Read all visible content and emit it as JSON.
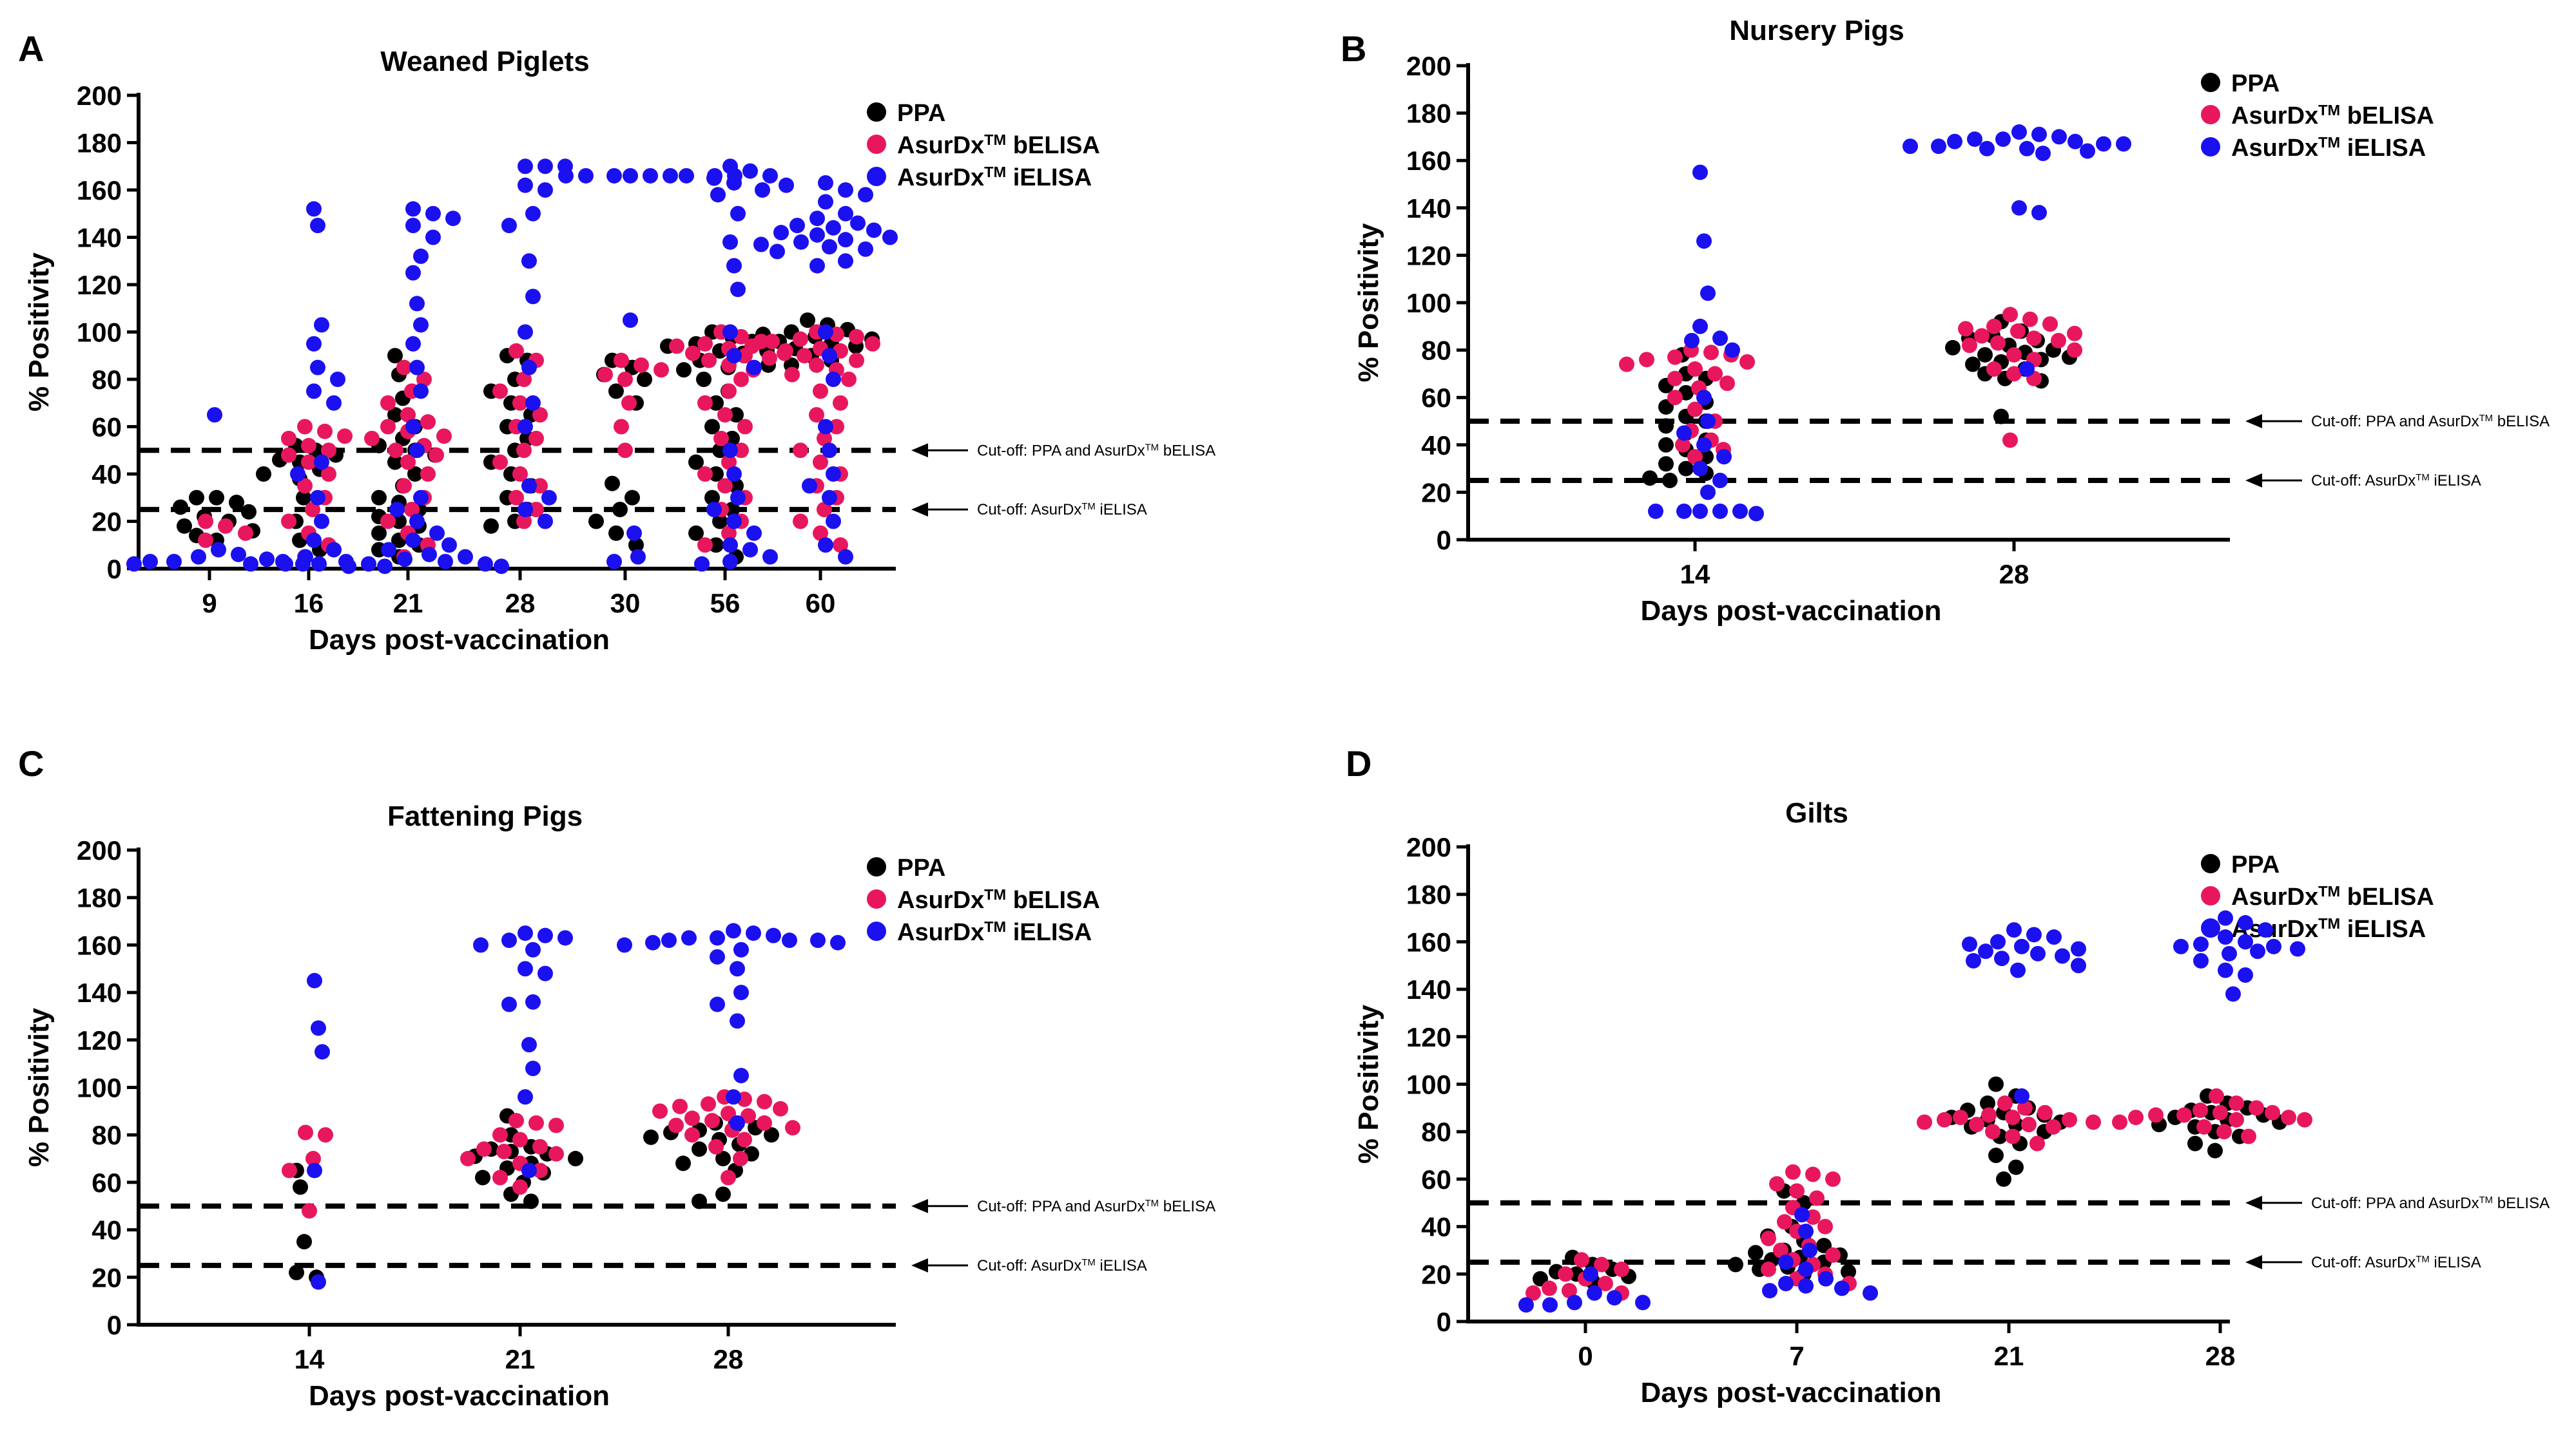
{
  "colors": {
    "ppa": "#000000",
    "belisa": "#e8175d",
    "ielisa": "#1b10f0"
  },
  "chart_data": [
    {
      "type": "scatter",
      "panel_label": "A",
      "title": "Weaned Piglets",
      "xlabel": "Days post-vaccination",
      "ylabel": "% Positivity",
      "ylim": [
        0,
        200
      ],
      "yticks": [
        0,
        20,
        40,
        60,
        80,
        100,
        120,
        140,
        160,
        180,
        200
      ],
      "categories": [
        "9",
        "16",
        "21",
        "28",
        "30",
        "56",
        "60"
      ],
      "legend": [
        "PPA",
        "AsurDx™ bELISA",
        "AsurDx™ iELISA"
      ],
      "cutoffs": [
        {
          "value": 50,
          "label": "Cut-off: PPA and AsurDx™ bELISA"
        },
        {
          "value": 25,
          "label": "Cut-off: AsurDx™ iELISA"
        }
      ],
      "series": [
        {
          "name": "PPA",
          "values": [
            [
              28,
              30,
              26,
              22,
              18,
              24,
              14,
              12,
              30,
              20,
              16
            ],
            [
              52,
              48,
              45,
              50,
              46,
              40,
              38,
              42,
              30,
              20,
              12,
              8
            ],
            [
              90,
              82,
              72,
              65,
              60,
              55,
              50,
              45,
              40,
              35,
              30,
              25,
              22,
              20,
              18,
              15,
              12,
              10,
              8,
              5,
              48,
              52,
              28
            ],
            [
              90,
              88,
              80,
              75,
              70,
              65,
              60,
              55,
              50,
              45,
              40,
              35,
              30,
              25,
              20,
              18
            ],
            [
              88,
              85,
              82,
              80,
              75,
              70,
              30,
              25,
              20,
              10,
              36,
              15
            ],
            [
              100,
              98,
              96,
              95,
              94,
              92,
              90,
              88,
              86,
              85,
              84,
              80,
              75,
              70,
              65,
              60,
              55,
              50,
              45,
              40,
              35,
              30,
              25,
              20,
              15,
              10,
              5
            ],
            [
              105,
              103,
              101,
              100,
              99,
              98,
              97,
              96,
              95,
              94,
              93,
              92,
              91,
              90,
              88,
              86
            ]
          ]
        },
        {
          "name": "AsurDx™ bELISA",
          "values": [
            [
              20,
              18,
              15,
              12
            ],
            [
              60,
              58,
              56,
              55,
              52,
              50,
              48,
              45,
              40,
              35,
              30,
              25,
              20,
              15,
              10,
              5
            ],
            [
              85,
              80,
              75,
              70,
              65,
              62,
              60,
              58,
              56,
              55,
              52,
              50,
              48,
              45,
              40,
              35,
              30,
              25,
              20,
              15,
              10,
              5
            ],
            [
              92,
              88,
              80,
              75,
              70,
              65,
              60,
              55,
              50,
              45,
              40,
              35,
              30,
              25,
              20
            ],
            [
              88,
              86,
              84,
              82,
              80,
              70,
              60,
              50
            ],
            [
              100,
              98,
              96,
              95,
              94,
              93,
              92,
              91,
              90,
              89,
              88,
              86,
              84,
              80,
              75,
              70,
              65,
              60,
              55,
              50,
              45,
              40,
              35,
              30,
              25,
              20,
              15,
              10
            ],
            [
              100,
              99,
              98,
              97,
              96,
              95,
              94,
              93,
              92,
              91,
              90,
              88,
              86,
              84,
              82,
              80,
              75,
              70,
              65,
              60,
              55,
              50,
              45,
              40,
              35,
              30,
              25,
              20,
              15,
              10
            ]
          ]
        },
        {
          "name": "AsurDx™ iELISA",
          "values": [
            [
              65,
              8,
              6,
              5,
              4,
              3,
              3,
              2,
              2,
              2,
              3,
              2
            ],
            [
              152,
              145,
              103,
              95,
              85,
              80,
              75,
              70,
              45,
              40,
              30,
              20,
              12,
              8,
              5,
              3,
              2
            ],
            [
              152,
              150,
              148,
              145,
              140,
              132,
              125,
              112,
              103,
              95,
              85,
              75,
              60,
              50,
              30,
              25,
              20,
              15,
              12,
              10,
              8,
              6,
              5,
              4,
              3,
              2,
              1,
              1,
              1,
              2
            ],
            [
              170,
              170,
              170,
              162,
              160,
              150,
              145,
              130,
              115,
              100,
              85,
              70,
              60,
              35,
              30,
              25,
              20
            ],
            [
              166,
              166,
              166,
              166,
              166,
              166,
              166,
              166,
              166,
              105,
              15,
              5,
              3
            ],
            [
              170,
              168,
              166,
              165,
              163,
              162,
              160,
              158,
              150,
              138,
              128,
              118,
              100,
              90,
              85,
              50,
              40,
              30,
              25,
              20,
              15,
              10,
              8,
              5,
              3,
              2
            ],
            [
              163,
              160,
              158,
              155,
              150,
              148,
              146,
              145,
              144,
              143,
              142,
              141,
              140,
              139,
              138,
              137,
              136,
              135,
              134,
              130,
              128,
              100,
              90,
              80,
              60,
              50,
              40,
              35,
              30,
              20,
              10,
              5
            ]
          ]
        }
      ]
    },
    {
      "type": "scatter",
      "panel_label": "B",
      "title": "Nursery Pigs",
      "xlabel": "Days post-vaccination",
      "ylabel": "% Positivity",
      "ylim": [
        0,
        200
      ],
      "yticks": [
        0,
        20,
        40,
        60,
        80,
        100,
        120,
        140,
        160,
        180,
        200
      ],
      "categories": [
        "14",
        "28"
      ],
      "legend": [
        "PPA",
        "AsurDx™ bELISA",
        "AsurDx™ iELISA"
      ],
      "cutoffs": [
        {
          "value": 50,
          "label": "Cut-off: PPA and AsurDx™ bELISA"
        },
        {
          "value": 25,
          "label": "Cut-off: AsurDx™ iELISA"
        }
      ],
      "series": [
        {
          "name": "PPA",
          "values": [
            [
              78,
              70,
              68,
              65,
              62,
              58,
              56,
              52,
              50,
              48,
              45,
              42,
              40,
              38,
              35,
              32,
              30,
              28,
              26,
              25
            ],
            [
              92,
              88,
              86,
              85,
              84,
              82,
              81,
              80,
              79,
              78,
              77,
              76,
              75,
              74,
              72,
              70,
              68,
              67,
              52
            ]
          ]
        },
        {
          "name": "AsurDx™ bELISA",
          "values": [
            [
              80,
              79,
              78,
              77,
              76,
              75,
              74,
              72,
              70,
              68,
              66,
              64,
              60,
              55,
              50,
              46,
              42,
              40,
              38,
              35
            ],
            [
              95,
              93,
              91,
              90,
              89,
              88,
              87,
              86,
              85,
              84,
              83,
              82,
              80,
              78,
              76,
              72,
              70,
              68,
              42
            ]
          ]
        },
        {
          "name": "AsurDx™ iELISA",
          "values": [
            [
              155,
              126,
              104,
              90,
              85,
              84,
              80,
              60,
              50,
              45,
              40,
              35,
              30,
              25,
              20,
              12,
              12,
              12,
              12,
              12,
              11
            ],
            [
              172,
              171,
              170,
              169,
              169,
              168,
              168,
              167,
              167,
              166,
              166,
              165,
              165,
              164,
              163,
              140,
              138,
              72
            ]
          ]
        }
      ]
    },
    {
      "type": "scatter",
      "panel_label": "C",
      "title": "Fattening Pigs",
      "xlabel": "Days post-vaccination",
      "ylabel": "% Positivity",
      "ylim": [
        0,
        200
      ],
      "yticks": [
        0,
        20,
        40,
        60,
        80,
        100,
        120,
        140,
        160,
        180,
        200
      ],
      "categories": [
        "14",
        "21",
        "28"
      ],
      "legend": [
        "PPA",
        "AsurDx™ bELISA",
        "AsurDx™ iELISA"
      ],
      "cutoffs": [
        {
          "value": 50,
          "label": "Cut-off: PPA and AsurDx™ bELISA"
        },
        {
          "value": 25,
          "label": "Cut-off: AsurDx™ iELISA"
        }
      ],
      "series": [
        {
          "name": "PPA",
          "values": [
            [
              65,
              58,
              35,
              22,
              20
            ],
            [
              88,
              80,
              75,
              74,
              73,
              72,
              71,
              70,
              68,
              66,
              64,
              62,
              60,
              55,
              52
            ],
            [
              85,
              84,
              83,
              82,
              81,
              80,
              79,
              78,
              76,
              74,
              72,
              70,
              68,
              65,
              55,
              52
            ]
          ]
        },
        {
          "name": "AsurDx™ bELISA",
          "values": [
            [
              81,
              80,
              70,
              65,
              48
            ],
            [
              86,
              85,
              84,
              80,
              78,
              75,
              74,
              73,
              72,
              70,
              68,
              65,
              62,
              58
            ],
            [
              96,
              95,
              94,
              93,
              92,
              91,
              90,
              89,
              88,
              87,
              86,
              85,
              84,
              83,
              82,
              80,
              78,
              75,
              70,
              62
            ]
          ]
        },
        {
          "name": "AsurDx™ iELISA",
          "values": [
            [
              145,
              125,
              115,
              65,
              18
            ],
            [
              165,
              164,
              163,
              162,
              160,
              158,
              150,
              148,
              136,
              135,
              118,
              108,
              96,
              65
            ],
            [
              166,
              165,
              164,
              163,
              163,
              162,
              162,
              162,
              161,
              161,
              160,
              158,
              155,
              150,
              140,
              135,
              128,
              105,
              96,
              85
            ]
          ]
        }
      ]
    },
    {
      "type": "scatter",
      "panel_label": "D",
      "title": "Gilts",
      "xlabel": "Days post-vaccination",
      "ylabel": "% Positivity",
      "ylim": [
        0,
        200
      ],
      "yticks": [
        0,
        20,
        40,
        60,
        80,
        100,
        120,
        140,
        160,
        180,
        200
      ],
      "categories": [
        "0",
        "7",
        "21",
        "28"
      ],
      "legend": [
        "PPA",
        "AsurDx™ bELISA",
        "AsurDx™ iELISA"
      ],
      "cutoffs": [
        {
          "value": 50,
          "label": "Cut-off: PPA and AsurDx™ bELISA"
        },
        {
          "value": 25,
          "label": "Cut-off: AsurDx™ iELISA"
        }
      ],
      "series": [
        {
          "name": "PPA",
          "values": [
            [
              27,
              24,
              22,
              21,
              20,
              19,
              18,
              17
            ],
            [
              55,
              50,
              40,
              36,
              34,
              32,
              30,
              29,
              28,
              27,
              26,
              25,
              24,
              23,
              22,
              21,
              20
            ],
            [
              100,
              95,
              92,
              90,
              89,
              88,
              87,
              86,
              85,
              84,
              83,
              82,
              80,
              78,
              75,
              70,
              65,
              60
            ],
            [
              95,
              92,
              90,
              89,
              88,
              87,
              86,
              85,
              84,
              83,
              82,
              80,
              78,
              75,
              72
            ]
          ]
        },
        {
          "name": "AsurDx™ bELISA",
          "values": [
            [
              26,
              24,
              22,
              20,
              18,
              16,
              14,
              13,
              12,
              12
            ],
            [
              63,
              62,
              60,
              58,
              55,
              52,
              48,
              44,
              42,
              40,
              38,
              35,
              32,
              30,
              28,
              26,
              24,
              22,
              20,
              18,
              16
            ],
            [
              92,
              90,
              88,
              87,
              86,
              86,
              85,
              85,
              84,
              84,
              83,
              83,
              82,
              80,
              78,
              75
            ],
            [
              95,
              92,
              90,
              89,
              88,
              88,
              87,
              87,
              86,
              86,
              85,
              85,
              84,
              82,
              80,
              78
            ]
          ]
        },
        {
          "name": "AsurDx™ iELISA",
          "values": [
            [
              20,
              12,
              10,
              8,
              8,
              7,
              7
            ],
            [
              45,
              38,
              30,
              25,
              22,
              18,
              16,
              15,
              14,
              13,
              12
            ],
            [
              165,
              163,
              162,
              160,
              159,
              158,
              157,
              156,
              155,
              154,
              153,
              152,
              150,
              148,
              95
            ],
            [
              170,
              168,
              165,
              162,
              160,
              159,
              158,
              158,
              157,
              156,
              155,
              152,
              148,
              146,
              138
            ]
          ]
        }
      ]
    }
  ]
}
